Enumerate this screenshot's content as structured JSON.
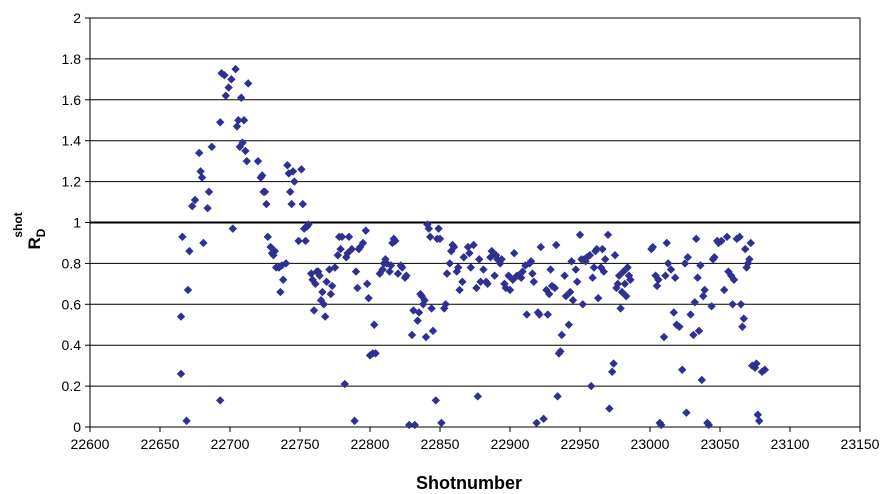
{
  "chart_data": {
    "type": "scatter",
    "title": "",
    "xlabel": "Shotnumber",
    "ylabel": "R",
    "ylabel_sub": "D",
    "ylabel_sup": "shot",
    "xlim": [
      22600,
      23150
    ],
    "ylim": [
      0,
      2
    ],
    "xticks": [
      22600,
      22650,
      22700,
      22750,
      22800,
      22850,
      22900,
      22950,
      23000,
      23050,
      23100,
      23150
    ],
    "yticks": [
      "0",
      "0.2",
      "0.4",
      "0.6",
      "0.8",
      "1",
      "1.2",
      "1.4",
      "1.6",
      "1.8",
      "2"
    ],
    "grid": "horizontal",
    "reference_line_y": 1,
    "marker": "diamond",
    "marker_color": "#2e3192",
    "series": [
      {
        "points": [
          [
            22665,
            0.26
          ],
          [
            22665,
            0.54
          ],
          [
            22666,
            0.93
          ],
          [
            22669,
            0.03
          ],
          [
            22670,
            0.67
          ],
          [
            22671,
            0.86
          ],
          [
            22673,
            1.08
          ],
          [
            22675,
            1.11
          ],
          [
            22678,
            1.34
          ],
          [
            22679,
            1.25
          ],
          [
            22680,
            1.22
          ],
          [
            22681,
            0.9
          ],
          [
            22684,
            1.07
          ],
          [
            22685,
            1.15
          ],
          [
            22687,
            1.37
          ],
          [
            22693,
            1.49
          ],
          [
            22693,
            0.13
          ],
          [
            22694,
            1.73
          ],
          [
            22696,
            1.72
          ],
          [
            22697,
            1.62
          ],
          [
            22699,
            1.66
          ],
          [
            22701,
            1.7
          ],
          [
            22702,
            0.97
          ],
          [
            22704,
            1.75
          ],
          [
            22705,
            1.47
          ],
          [
            22706,
            1.5
          ],
          [
            22707,
            1.37
          ],
          [
            22708,
            1.61
          ],
          [
            22709,
            1.39
          ],
          [
            22710,
            1.5
          ],
          [
            22711,
            1.35
          ],
          [
            22712,
            1.3
          ],
          [
            22713,
            1.68
          ],
          [
            22720,
            1.3
          ],
          [
            22722,
            1.22
          ],
          [
            22723,
            1.23
          ],
          [
            22724,
            1.15
          ],
          [
            22725,
            1.15
          ],
          [
            22726,
            1.09
          ],
          [
            22727,
            0.93
          ],
          [
            22729,
            0.88
          ],
          [
            22730,
            0.85
          ],
          [
            22731,
            0.84
          ],
          [
            22732,
            0.86
          ],
          [
            22733,
            0.78
          ],
          [
            22735,
            0.78
          ],
          [
            22736,
            0.66
          ],
          [
            22737,
            0.79
          ],
          [
            22738,
            0.72
          ],
          [
            22740,
            0.8
          ],
          [
            22741,
            1.28
          ],
          [
            22742,
            1.24
          ],
          [
            22743,
            1.15
          ],
          [
            22744,
            1.09
          ],
          [
            22745,
            1.25
          ],
          [
            22746,
            1.2
          ],
          [
            22749,
            0.91
          ],
          [
            22751,
            1.26
          ],
          [
            22752,
            1.09
          ],
          [
            22753,
            0.97
          ],
          [
            22754,
            0.91
          ],
          [
            22755,
            0.98
          ],
          [
            22756,
            0.99
          ],
          [
            22758,
            0.75
          ],
          [
            22759,
            0.72
          ],
          [
            22760,
            0.57
          ],
          [
            22761,
            0.7
          ],
          [
            22762,
            0.76
          ],
          [
            22763,
            0.76
          ],
          [
            22764,
            0.74
          ],
          [
            22765,
            0.62
          ],
          [
            22766,
            0.66
          ],
          [
            22767,
            0.6
          ],
          [
            22768,
            0.54
          ],
          [
            22769,
            0.71
          ],
          [
            22771,
            0.77
          ],
          [
            22772,
            0.65
          ],
          [
            22773,
            0.69
          ],
          [
            22775,
            0.78
          ],
          [
            22777,
            0.84
          ],
          [
            22778,
            0.93
          ],
          [
            22779,
            0.87
          ],
          [
            22780,
            0.93
          ],
          [
            22782,
            0.21
          ],
          [
            22783,
            0.83
          ],
          [
            22784,
            0.85
          ],
          [
            22785,
            0.93
          ],
          [
            22787,
            0.87
          ],
          [
            22789,
            0.03
          ],
          [
            22790,
            0.76
          ],
          [
            22791,
            0.68
          ],
          [
            22792,
            0.87
          ],
          [
            22793,
            0.88
          ],
          [
            22795,
            0.9
          ],
          [
            22797,
            0.96
          ],
          [
            22798,
            0.7
          ],
          [
            22799,
            0.63
          ],
          [
            22800,
            0.35
          ],
          [
            22802,
            0.36
          ],
          [
            22803,
            0.5
          ],
          [
            22804,
            0.36
          ],
          [
            22807,
            0.75
          ],
          [
            22809,
            0.77
          ],
          [
            22810,
            0.8
          ],
          [
            22811,
            0.82
          ],
          [
            22812,
            0.8
          ],
          [
            22814,
            0.76
          ],
          [
            22815,
            0.79
          ],
          [
            22816,
            0.9
          ],
          [
            22817,
            0.92
          ],
          [
            22818,
            0.91
          ],
          [
            22820,
            0.75
          ],
          [
            22822,
            0.79
          ],
          [
            22823,
            0.78
          ],
          [
            22825,
            0.73
          ],
          [
            22826,
            0.74
          ],
          [
            22828,
            0.01
          ],
          [
            22830,
            0.45
          ],
          [
            22831,
            0.57
          ],
          [
            22832,
            0.01
          ],
          [
            22834,
            0.52
          ],
          [
            22835,
            0.56
          ],
          [
            22836,
            0.65
          ],
          [
            22837,
            0.64
          ],
          [
            22838,
            0.6
          ],
          [
            22839,
            0.62
          ],
          [
            22840,
            0.44
          ],
          [
            22841,
            0.99
          ],
          [
            22842,
            0.97
          ],
          [
            22843,
            0.93
          ],
          [
            22844,
            0.58
          ],
          [
            22845,
            0.47
          ],
          [
            22847,
            0.13
          ],
          [
            22848,
            0.92
          ],
          [
            22849,
            0.97
          ],
          [
            22850,
            0.92
          ],
          [
            22851,
            0.02
          ],
          [
            22853,
            0.58
          ],
          [
            22854,
            0.6
          ],
          [
            22855,
            0.75
          ],
          [
            22857,
            0.8
          ],
          [
            22858,
            0.86
          ],
          [
            22859,
            0.89
          ],
          [
            22860,
            0.88
          ],
          [
            22862,
            0.76
          ],
          [
            22863,
            0.78
          ],
          [
            22864,
            0.67
          ],
          [
            22866,
            0.71
          ],
          [
            22867,
            0.83
          ],
          [
            22870,
            0.88
          ],
          [
            22871,
            0.85
          ],
          [
            22872,
            0.78
          ],
          [
            22874,
            0.89
          ],
          [
            22876,
            0.68
          ],
          [
            22877,
            0.15
          ],
          [
            22878,
            0.82
          ],
          [
            22879,
            0.71
          ],
          [
            22881,
            0.77
          ],
          [
            22883,
            0.71
          ],
          [
            22884,
            0.7
          ],
          [
            22886,
            0.83
          ],
          [
            22887,
            0.86
          ],
          [
            22889,
            0.74
          ],
          [
            22890,
            0.84
          ],
          [
            22891,
            0.82
          ],
          [
            22893,
            0.8
          ],
          [
            22894,
            0.82
          ],
          [
            22896,
            0.7
          ],
          [
            22897,
            0.68
          ],
          [
            22899,
            0.74
          ],
          [
            22900,
            0.67
          ],
          [
            22902,
            0.72
          ],
          [
            22903,
            0.85
          ],
          [
            22905,
            0.74
          ],
          [
            22906,
            0.74
          ],
          [
            22908,
            0.73
          ],
          [
            22909,
            0.76
          ],
          [
            22911,
            0.79
          ],
          [
            22912,
            0.55
          ],
          [
            22914,
            0.8
          ],
          [
            22915,
            0.81
          ],
          [
            22916,
            0.75
          ],
          [
            22917,
            0.71
          ],
          [
            22919,
            0.02
          ],
          [
            22920,
            0.56
          ],
          [
            22921,
            0.55
          ],
          [
            22922,
            0.88
          ],
          [
            22924,
            0.04
          ],
          [
            22926,
            0.67
          ],
          [
            22927,
            0.55
          ],
          [
            22928,
            0.65
          ],
          [
            22929,
            0.77
          ],
          [
            22930,
            0.69
          ],
          [
            22932,
            0.68
          ],
          [
            22933,
            0.89
          ],
          [
            22934,
            0.15
          ],
          [
            22935,
            0.36
          ],
          [
            22936,
            0.37
          ],
          [
            22937,
            0.45
          ],
          [
            22939,
            0.74
          ],
          [
            22940,
            0.64
          ],
          [
            22942,
            0.5
          ],
          [
            22943,
            0.66
          ],
          [
            22944,
            0.81
          ],
          [
            22945,
            0.62
          ],
          [
            22947,
            0.77
          ],
          [
            22948,
            0.71
          ],
          [
            22950,
            0.94
          ],
          [
            22951,
            0.82
          ],
          [
            22952,
            0.6
          ],
          [
            22953,
            0.82
          ],
          [
            22954,
            0.81
          ],
          [
            22955,
            0.83
          ],
          [
            22957,
            0.84
          ],
          [
            22958,
            0.2
          ],
          [
            22959,
            0.73
          ],
          [
            22960,
            0.78
          ],
          [
            22961,
            0.86
          ],
          [
            22962,
            0.87
          ],
          [
            22963,
            0.63
          ],
          [
            22965,
            0.78
          ],
          [
            22966,
            0.87
          ],
          [
            22967,
            0.76
          ],
          [
            22968,
            0.82
          ],
          [
            22970,
            0.94
          ],
          [
            22971,
            0.09
          ],
          [
            22973,
            0.27
          ],
          [
            22974,
            0.31
          ],
          [
            22975,
            0.84
          ],
          [
            22976,
            0.68
          ],
          [
            22977,
            0.7
          ],
          [
            22978,
            0.74
          ],
          [
            22979,
            0.58
          ],
          [
            22980,
            0.66
          ],
          [
            22981,
            0.76
          ],
          [
            22982,
            0.7
          ],
          [
            22983,
            0.64
          ],
          [
            22984,
            0.78
          ],
          [
            22985,
            0.74
          ],
          [
            22986,
            0.72
          ],
          [
            23001,
            0.87
          ],
          [
            23002,
            0.88
          ],
          [
            23004,
            0.74
          ],
          [
            23005,
            0.69
          ],
          [
            23006,
            0.72
          ],
          [
            23007,
            0.02
          ],
          [
            23008,
            0.01
          ],
          [
            23010,
            0.44
          ],
          [
            23011,
            0.74
          ],
          [
            23012,
            0.9
          ],
          [
            23013,
            0.8
          ],
          [
            23015,
            0.77
          ],
          [
            23017,
            0.56
          ],
          [
            23018,
            0.73
          ],
          [
            23019,
            0.5
          ],
          [
            23021,
            0.49
          ],
          [
            23023,
            0.28
          ],
          [
            23025,
            0.8
          ],
          [
            23026,
            0.07
          ],
          [
            23027,
            0.83
          ],
          [
            23029,
            0.55
          ],
          [
            23031,
            0.45
          ],
          [
            23032,
            0.61
          ],
          [
            23033,
            0.92
          ],
          [
            23034,
            0.73
          ],
          [
            23035,
            0.47
          ],
          [
            23036,
            0.79
          ],
          [
            23037,
            0.23
          ],
          [
            23038,
            0.64
          ],
          [
            23039,
            0.67
          ],
          [
            23041,
            0.02
          ],
          [
            23042,
            0.01
          ],
          [
            23044,
            0.59
          ],
          [
            23045,
            0.82
          ],
          [
            23046,
            0.83
          ],
          [
            23048,
            0.91
          ],
          [
            23049,
            0.9
          ],
          [
            23051,
            0.91
          ],
          [
            23053,
            0.67
          ],
          [
            23055,
            0.93
          ],
          [
            23056,
            0.76
          ],
          [
            23058,
            0.74
          ],
          [
            23059,
            0.6
          ],
          [
            23060,
            0.72
          ],
          [
            23062,
            0.92
          ],
          [
            23064,
            0.93
          ],
          [
            23065,
            0.6
          ],
          [
            23066,
            0.49
          ],
          [
            23067,
            0.53
          ],
          [
            23068,
            0.87
          ],
          [
            23069,
            0.78
          ],
          [
            23070,
            0.8
          ],
          [
            23071,
            0.82
          ],
          [
            23072,
            0.9
          ],
          [
            23073,
            0.3
          ],
          [
            23075,
            0.29
          ],
          [
            23076,
            0.31
          ],
          [
            23077,
            0.06
          ],
          [
            23078,
            0.03
          ],
          [
            23080,
            0.27
          ],
          [
            23082,
            0.28
          ]
        ]
      }
    ]
  }
}
